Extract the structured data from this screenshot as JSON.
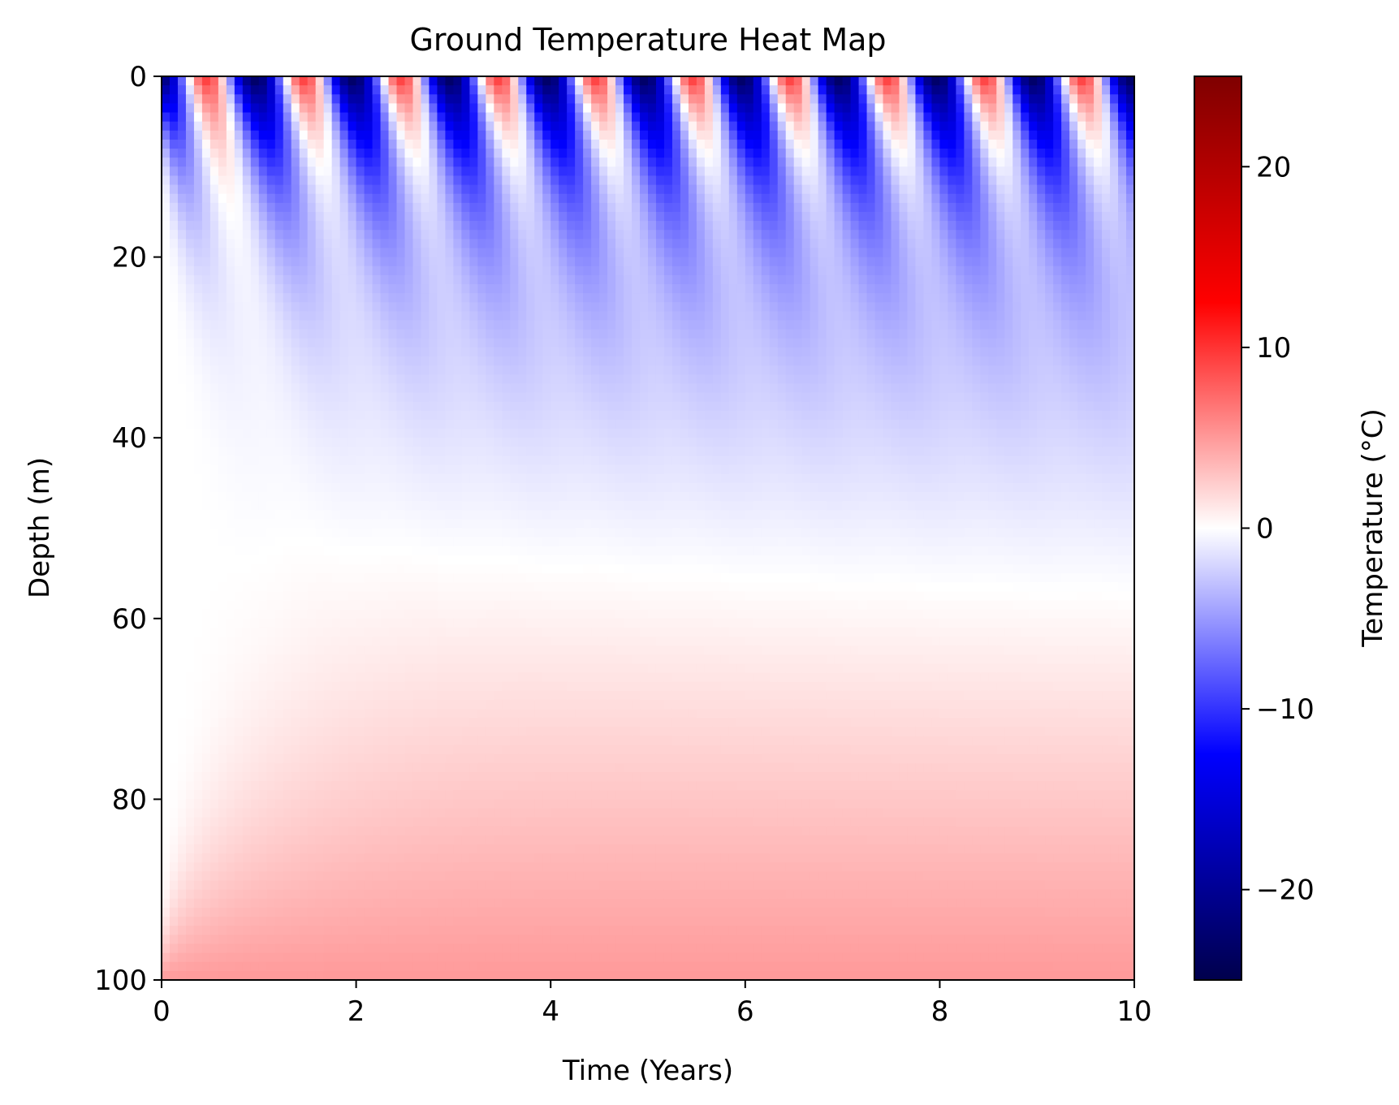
{
  "chart_data": {
    "type": "heatmap",
    "title": "Ground Temperature Heat Map",
    "xlabel": "Time (Years)",
    "ylabel": "Depth (m)",
    "xlim": [
      0,
      10
    ],
    "ylim": [
      100,
      0
    ],
    "x_ticks": [
      0,
      2,
      4,
      6,
      8,
      10
    ],
    "y_ticks": [
      0,
      20,
      40,
      60,
      80,
      100
    ],
    "colormap": "seismic",
    "colorbar": {
      "label": "Temperature (°C)",
      "range": [
        -25,
        25
      ],
      "ticks": [
        20,
        10,
        0,
        -10,
        -20
      ],
      "tick_labels": [
        "20",
        "10",
        "0",
        "−10",
        "−20"
      ]
    },
    "field": {
      "time_steps": 120,
      "depth_steps": 100,
      "surface_mean": -7,
      "surface_amplitude": 17,
      "surface_period_years": 1,
      "bottom_temperature": 5,
      "note_description": ""
    },
    "colors": {
      "seismic_stops": [
        "#00004c",
        "#0000ff",
        "#ffffff",
        "#ff0000",
        "#7f0000"
      ]
    }
  }
}
